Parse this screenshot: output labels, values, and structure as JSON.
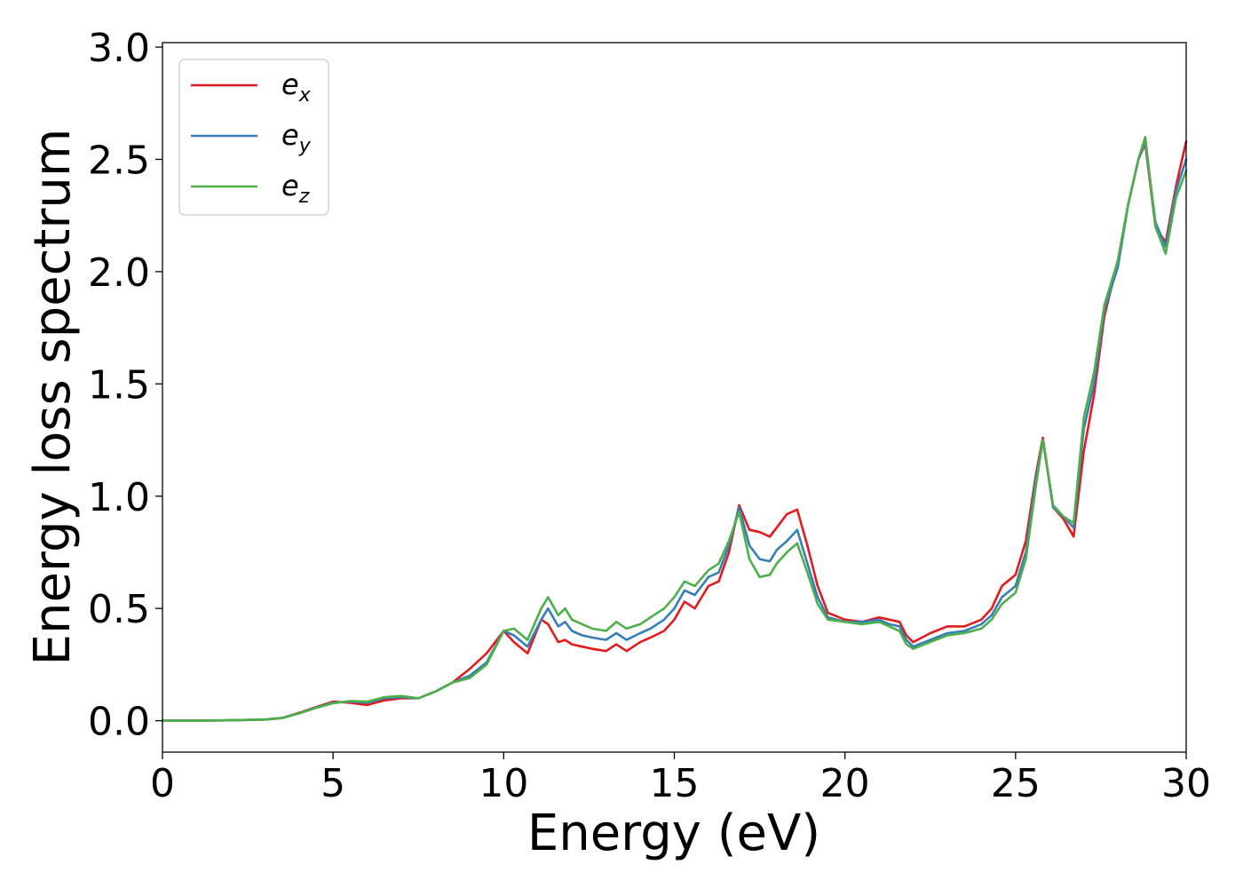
{
  "chart_data": {
    "type": "line",
    "xlabel": "Energy (eV)",
    "ylabel": "Energy loss spectrum",
    "xlim": [
      0,
      30
    ],
    "ylim": [
      -0.14,
      3.02
    ],
    "xticks": [
      0,
      5,
      10,
      15,
      20,
      25,
      30
    ],
    "xtick_labels": [
      "0",
      "5",
      "10",
      "15",
      "20",
      "25",
      "30"
    ],
    "yticks": [
      0.0,
      0.5,
      1.0,
      1.5,
      2.0,
      2.5,
      3.0
    ],
    "ytick_labels": [
      "0.0",
      "0.5",
      "1.0",
      "1.5",
      "2.0",
      "2.5",
      "3.0"
    ],
    "grid": false,
    "legend_position": "top-left",
    "series": [
      {
        "name_base": "e",
        "name_sub": "x",
        "color": "#e41a1c",
        "x": [
          0,
          1,
          2,
          3,
          3.5,
          4,
          4.5,
          5,
          5.5,
          6,
          6.5,
          7,
          7.5,
          8,
          8.5,
          9,
          9.5,
          10,
          10.3,
          10.7,
          11.1,
          11.3,
          11.6,
          11.8,
          12,
          12.3,
          12.6,
          13,
          13.3,
          13.6,
          14,
          14.3,
          14.7,
          15,
          15.3,
          15.6,
          16,
          16.3,
          16.6,
          16.9,
          17.2,
          17.5,
          17.8,
          18,
          18.3,
          18.6,
          18.9,
          19.2,
          19.5,
          20,
          20.5,
          21,
          21.3,
          21.6,
          21.8,
          22,
          22.5,
          23,
          23.5,
          24,
          24.3,
          24.6,
          25,
          25.3,
          25.6,
          25.8,
          26.1,
          26.4,
          26.7,
          27,
          27.3,
          27.6,
          28,
          28.3,
          28.6,
          28.8,
          29.1,
          29.4,
          29.7,
          30
        ],
        "y": [
          0.0,
          0.0,
          0.002,
          0.005,
          0.012,
          0.035,
          0.06,
          0.085,
          0.08,
          0.07,
          0.09,
          0.1,
          0.1,
          0.13,
          0.17,
          0.23,
          0.3,
          0.4,
          0.35,
          0.3,
          0.45,
          0.43,
          0.35,
          0.36,
          0.34,
          0.33,
          0.32,
          0.31,
          0.34,
          0.31,
          0.35,
          0.37,
          0.4,
          0.45,
          0.53,
          0.5,
          0.6,
          0.62,
          0.75,
          0.96,
          0.85,
          0.84,
          0.82,
          0.86,
          0.92,
          0.94,
          0.78,
          0.6,
          0.48,
          0.45,
          0.44,
          0.46,
          0.45,
          0.44,
          0.38,
          0.35,
          0.39,
          0.42,
          0.42,
          0.45,
          0.5,
          0.6,
          0.65,
          0.8,
          1.1,
          1.26,
          0.95,
          0.9,
          0.82,
          1.2,
          1.45,
          1.8,
          2.05,
          2.3,
          2.5,
          2.57,
          2.2,
          2.13,
          2.38,
          2.58
        ]
      },
      {
        "name_base": "e",
        "name_sub": "y",
        "color": "#377eb8",
        "x": [
          0,
          1,
          2,
          3,
          3.5,
          4,
          4.5,
          5,
          5.5,
          6,
          6.5,
          7,
          7.5,
          8,
          8.5,
          9,
          9.5,
          10,
          10.3,
          10.7,
          11.1,
          11.3,
          11.6,
          11.8,
          12,
          12.3,
          12.6,
          13,
          13.3,
          13.6,
          14,
          14.3,
          14.7,
          15,
          15.3,
          15.6,
          16,
          16.3,
          16.6,
          16.9,
          17.2,
          17.5,
          17.8,
          18,
          18.3,
          18.6,
          18.9,
          19.2,
          19.5,
          20,
          20.5,
          21,
          21.3,
          21.6,
          21.8,
          22,
          22.5,
          23,
          23.5,
          24,
          24.3,
          24.6,
          25,
          25.3,
          25.6,
          25.8,
          26.1,
          26.4,
          26.7,
          27,
          27.3,
          27.6,
          28,
          28.3,
          28.6,
          28.8,
          29.1,
          29.4,
          29.7,
          30
        ],
        "y": [
          0.0,
          0.0,
          0.002,
          0.005,
          0.012,
          0.033,
          0.058,
          0.08,
          0.085,
          0.08,
          0.1,
          0.105,
          0.1,
          0.13,
          0.17,
          0.2,
          0.26,
          0.4,
          0.38,
          0.33,
          0.45,
          0.5,
          0.42,
          0.44,
          0.4,
          0.38,
          0.37,
          0.36,
          0.39,
          0.36,
          0.39,
          0.41,
          0.45,
          0.5,
          0.58,
          0.56,
          0.64,
          0.66,
          0.78,
          0.95,
          0.78,
          0.72,
          0.71,
          0.76,
          0.8,
          0.85,
          0.7,
          0.55,
          0.46,
          0.44,
          0.44,
          0.45,
          0.43,
          0.42,
          0.36,
          0.33,
          0.36,
          0.39,
          0.4,
          0.43,
          0.47,
          0.55,
          0.6,
          0.75,
          1.08,
          1.25,
          0.95,
          0.91,
          0.86,
          1.3,
          1.5,
          1.83,
          2.02,
          2.3,
          2.5,
          2.58,
          2.22,
          2.11,
          2.36,
          2.5
        ]
      },
      {
        "name_base": "e",
        "name_sub": "z",
        "color": "#4daf4a",
        "x": [
          0,
          1,
          2,
          3,
          3.5,
          4,
          4.5,
          5,
          5.5,
          6,
          6.5,
          7,
          7.5,
          8,
          8.5,
          9,
          9.5,
          10,
          10.3,
          10.7,
          11.1,
          11.3,
          11.6,
          11.8,
          12,
          12.3,
          12.6,
          13,
          13.3,
          13.6,
          14,
          14.3,
          14.7,
          15,
          15.3,
          15.6,
          16,
          16.3,
          16.6,
          16.9,
          17.2,
          17.5,
          17.8,
          18,
          18.3,
          18.6,
          18.9,
          19.2,
          19.5,
          20,
          20.5,
          21,
          21.3,
          21.6,
          21.8,
          22,
          22.5,
          23,
          23.5,
          24,
          24.3,
          24.6,
          25,
          25.3,
          25.6,
          25.8,
          26.1,
          26.4,
          26.7,
          27,
          27.3,
          27.6,
          28,
          28.3,
          28.6,
          28.8,
          29.1,
          29.4,
          29.7,
          30
        ],
        "y": [
          0.0,
          0.0,
          0.002,
          0.005,
          0.012,
          0.032,
          0.057,
          0.078,
          0.088,
          0.085,
          0.105,
          0.11,
          0.1,
          0.13,
          0.17,
          0.19,
          0.25,
          0.4,
          0.41,
          0.36,
          0.5,
          0.55,
          0.47,
          0.5,
          0.45,
          0.43,
          0.41,
          0.4,
          0.44,
          0.41,
          0.43,
          0.46,
          0.5,
          0.55,
          0.62,
          0.6,
          0.67,
          0.7,
          0.8,
          0.93,
          0.72,
          0.64,
          0.65,
          0.7,
          0.75,
          0.79,
          0.66,
          0.52,
          0.45,
          0.44,
          0.43,
          0.44,
          0.42,
          0.4,
          0.34,
          0.32,
          0.35,
          0.38,
          0.39,
          0.41,
          0.45,
          0.52,
          0.57,
          0.72,
          1.05,
          1.25,
          0.96,
          0.91,
          0.88,
          1.35,
          1.55,
          1.85,
          2.05,
          2.3,
          2.5,
          2.6,
          2.2,
          2.08,
          2.33,
          2.45
        ]
      }
    ]
  }
}
